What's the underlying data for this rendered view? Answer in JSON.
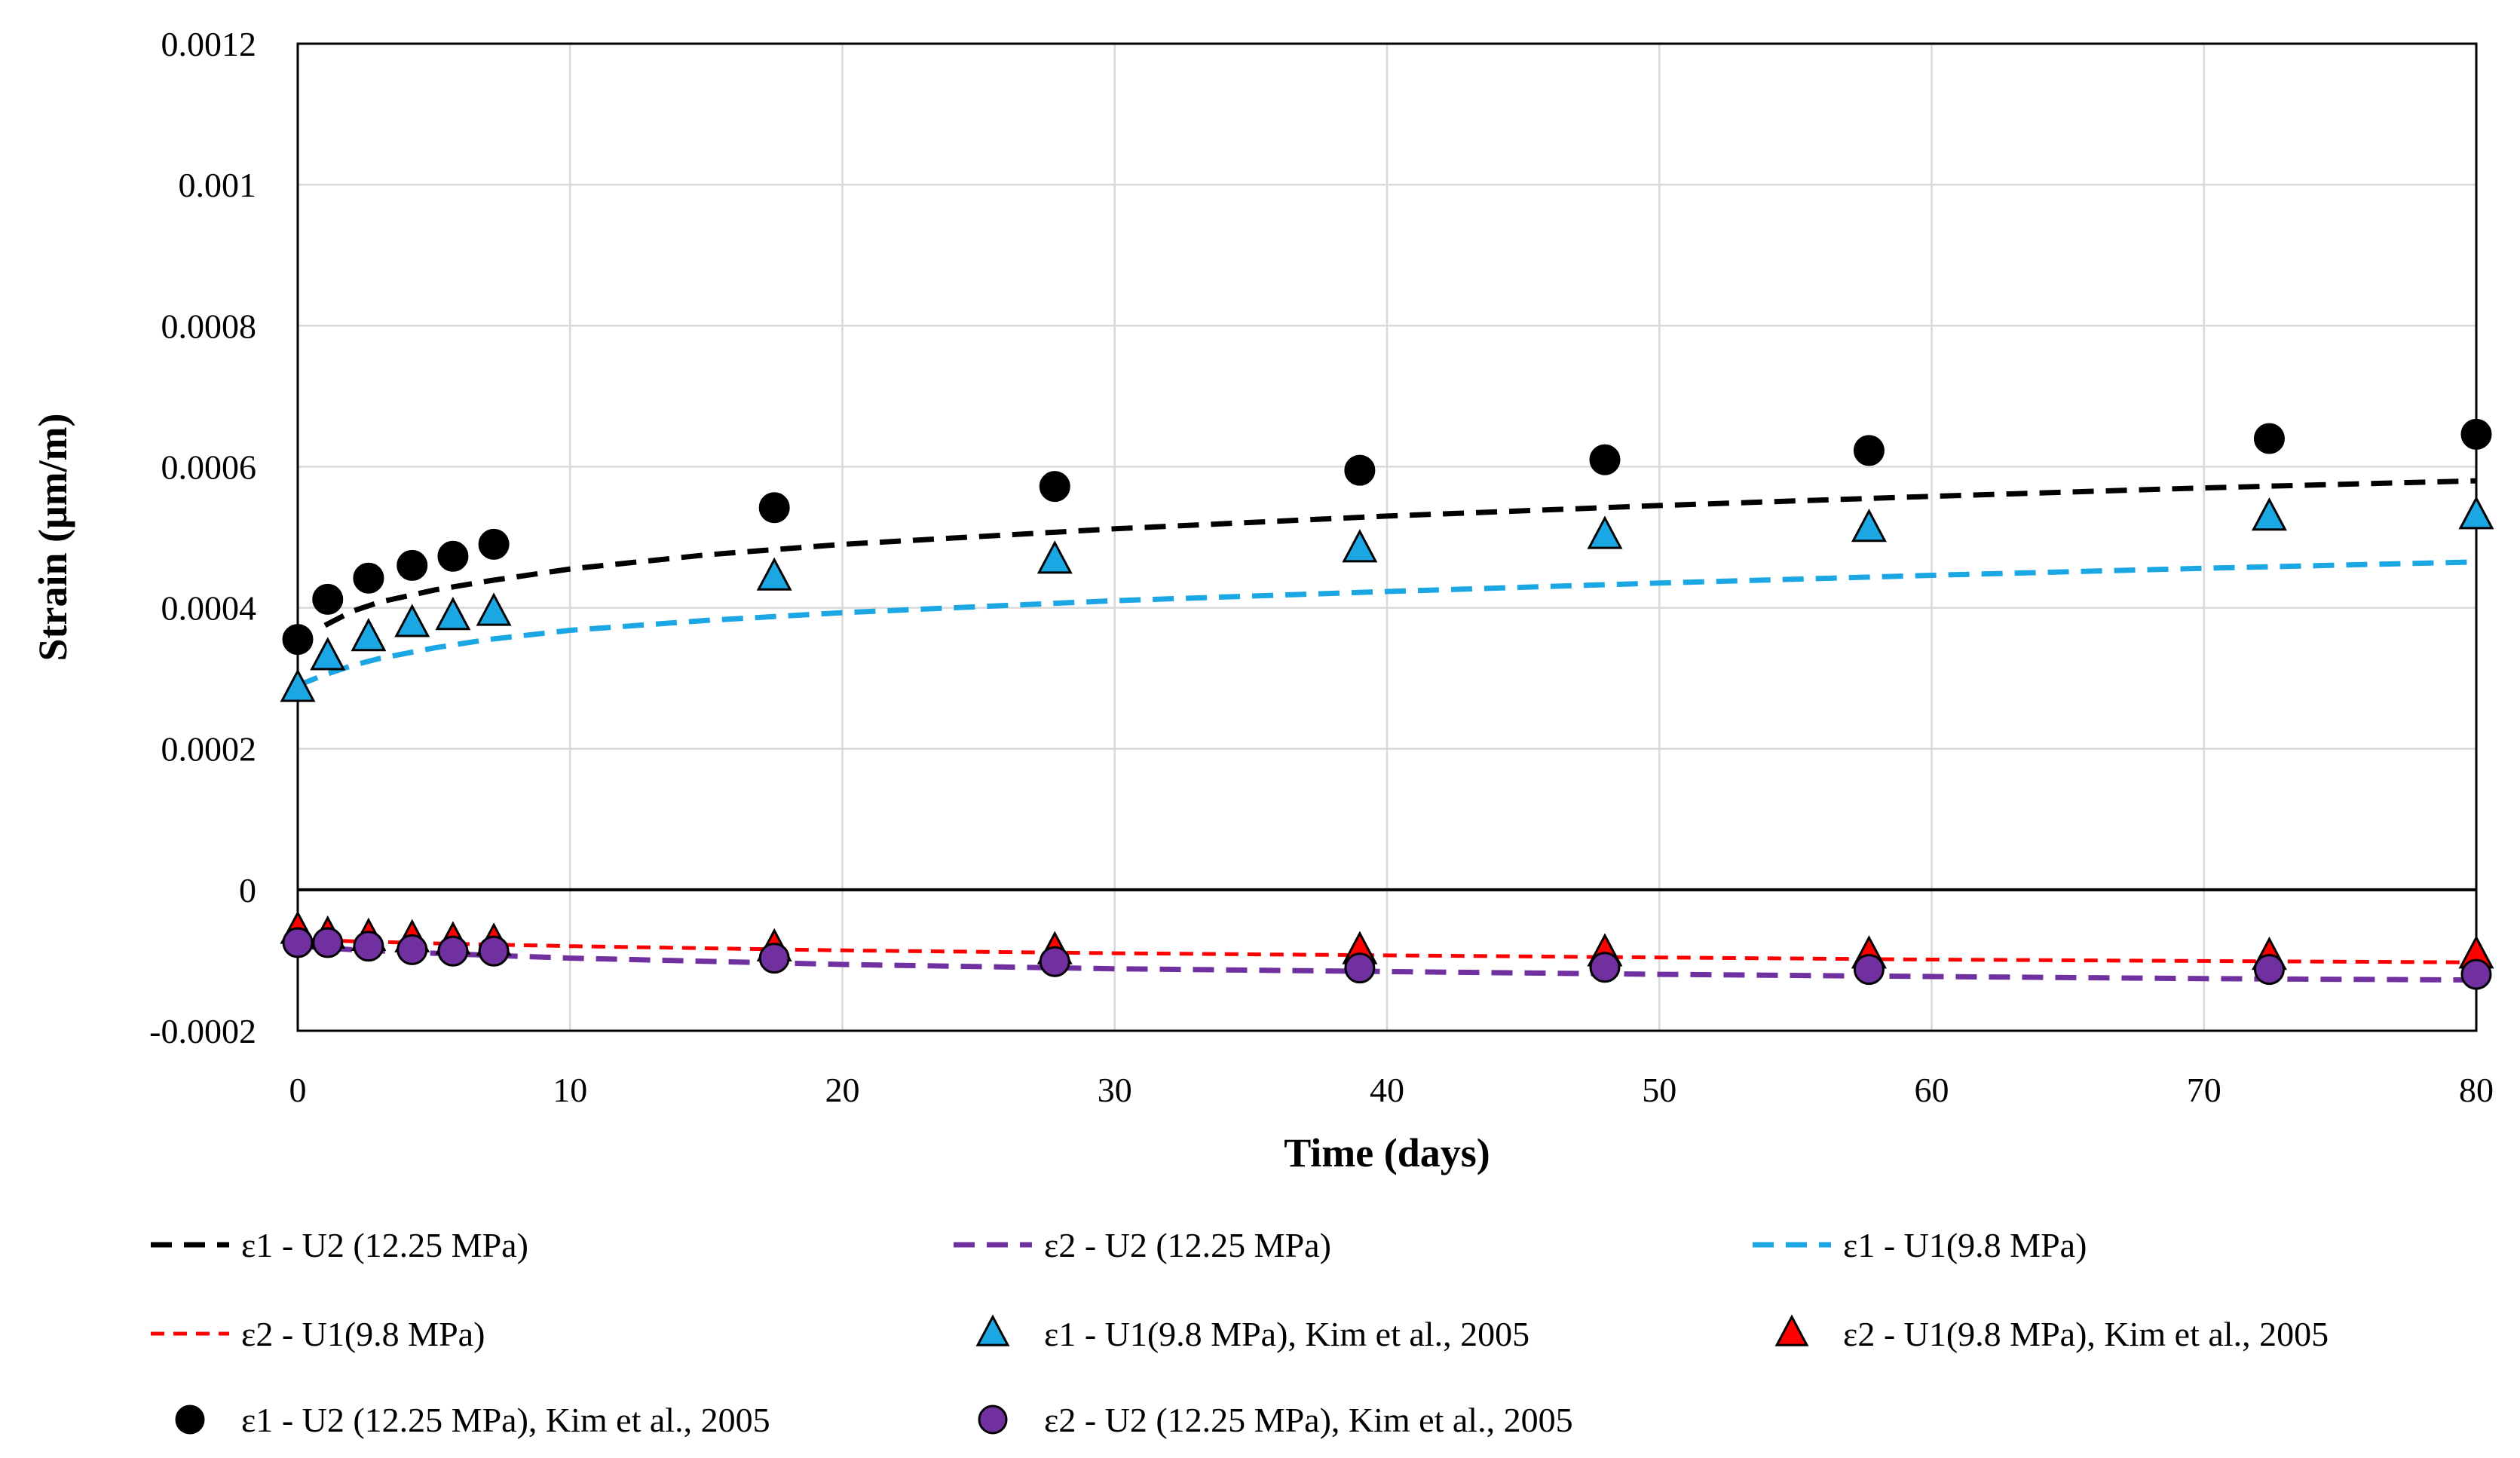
{
  "chart_data": {
    "type": "scatter",
    "xlabel": "Time (days)",
    "ylabel": "Strain (μm/m)",
    "xlim": [
      0,
      80
    ],
    "ylim": [
      -0.0002,
      0.0012
    ],
    "x_ticks": [
      0,
      10,
      20,
      30,
      40,
      50,
      60,
      70,
      80
    ],
    "x_tick_labels": [
      "0",
      "10",
      "20",
      "30",
      "40",
      "50",
      "60",
      "70",
      "80"
    ],
    "y_ticks": [
      -0.0002,
      0,
      0.0002,
      0.0004,
      0.0006,
      0.0008,
      0.001,
      0.0012
    ],
    "y_tick_labels": [
      "-0.0002",
      "0",
      "0.0002",
      "0.0004",
      "0.0006",
      "0.0008",
      "0.001",
      "0.0012"
    ],
    "grid": true,
    "legend_position": "bottom",
    "series": [
      {
        "name": "ε1 - U2 (12.25 MPa)",
        "kind": "line",
        "style": "dashed",
        "color": "#000000",
        "x": [
          1,
          2,
          3,
          5,
          7,
          10,
          15,
          20,
          30,
          40,
          50,
          60,
          70,
          80
        ],
        "y": [
          0.000375,
          0.000395,
          0.000408,
          0.000425,
          0.000438,
          0.000455,
          0.000475,
          0.00049,
          0.000512,
          0.00053,
          0.000545,
          0.000558,
          0.00057,
          0.00058
        ]
      },
      {
        "name": "ε2 - U2 (12.25 MPa)",
        "kind": "line",
        "style": "dashed",
        "color": "#7030a0",
        "x": [
          0,
          2,
          5,
          10,
          20,
          30,
          40,
          50,
          60,
          70,
          80
        ],
        "y": [
          -8e-05,
          -8.5e-05,
          -9e-05,
          -9.7e-05,
          -0.000106,
          -0.000112,
          -0.000116,
          -0.00012,
          -0.000123,
          -0.000126,
          -0.000128
        ]
      },
      {
        "name": "ε1 - U1(9.8 MPa)",
        "kind": "line",
        "style": "dashed",
        "color": "#1aa7e3",
        "x": [
          0,
          1,
          2,
          3,
          5,
          7,
          10,
          15,
          20,
          30,
          40,
          50,
          60,
          70,
          80
        ],
        "y": [
          0.00029,
          0.000305,
          0.000318,
          0.000328,
          0.000343,
          0.000355,
          0.000368,
          0.000382,
          0.000393,
          0.00041,
          0.000423,
          0.000435,
          0.000446,
          0.000456,
          0.000465
        ]
      },
      {
        "name": "ε2 - U1(9.8 MPa)",
        "kind": "line",
        "style": "dashed",
        "color": "#ff0000",
        "x": [
          0,
          2,
          5,
          10,
          20,
          30,
          40,
          50,
          60,
          70,
          80
        ],
        "y": [
          -7e-05,
          -7.3e-05,
          -7.6e-05,
          -8e-05,
          -8.6e-05,
          -9e-05,
          -9.3e-05,
          -9.6e-05,
          -9.9e-05,
          -0.000101,
          -0.000103
        ]
      },
      {
        "name": "ε1 - U1(9.8 MPa), Kim et al., 2005",
        "kind": "marker",
        "marker": "triangle",
        "color": "#1aa7e3",
        "x": [
          0,
          1.1,
          2.6,
          4.2,
          5.7,
          7.2,
          17.5,
          27.8,
          39,
          48,
          57.7,
          72.4,
          80
        ],
        "y": [
          0.000285,
          0.00033,
          0.000357,
          0.000377,
          0.000387,
          0.000393,
          0.000443,
          0.000467,
          0.000483,
          0.000502,
          0.000512,
          0.000528,
          0.00053
        ]
      },
      {
        "name": "ε2 - U1(9.8 MPa), Kim et al., 2005",
        "kind": "marker",
        "marker": "triangle",
        "color": "#ff0000",
        "x": [
          0,
          1.1,
          2.6,
          4.2,
          5.7,
          7.2,
          17.5,
          27.8,
          39,
          48,
          57.7,
          72.4,
          80
        ],
        "y": [
          -5.8e-05,
          -6.5e-05,
          -6.8e-05,
          -7e-05,
          -7.3e-05,
          -7.5e-05,
          -8.3e-05,
          -8.7e-05,
          -8.7e-05,
          -9e-05,
          -9.3e-05,
          -9.5e-05,
          -9.3e-05
        ]
      },
      {
        "name": "ε1 - U2 (12.25 MPa), Kim et al., 2005",
        "kind": "marker",
        "marker": "circle",
        "color": "#000000",
        "x": [
          0,
          1.1,
          2.6,
          4.2,
          5.7,
          7.2,
          17.5,
          27.8,
          39,
          48,
          57.7,
          72.4,
          80
        ],
        "y": [
          0.000355,
          0.000412,
          0.000442,
          0.00046,
          0.000473,
          0.00049,
          0.000542,
          0.000572,
          0.000595,
          0.00061,
          0.000623,
          0.00064,
          0.000646
        ]
      },
      {
        "name": "ε2 - U2 (12.25 MPa), Kim et al., 2005",
        "kind": "marker",
        "marker": "circle",
        "color": "#7030a0",
        "x": [
          0,
          1.1,
          2.6,
          4.2,
          5.7,
          7.2,
          17.5,
          27.8,
          39,
          48,
          57.7,
          72.4,
          80
        ],
        "y": [
          -7.5e-05,
          -7.5e-05,
          -8e-05,
          -8.5e-05,
          -8.7e-05,
          -8.7e-05,
          -9.7e-05,
          -0.000102,
          -0.000111,
          -0.00011,
          -0.000113,
          -0.000113,
          -0.00012
        ]
      }
    ]
  }
}
